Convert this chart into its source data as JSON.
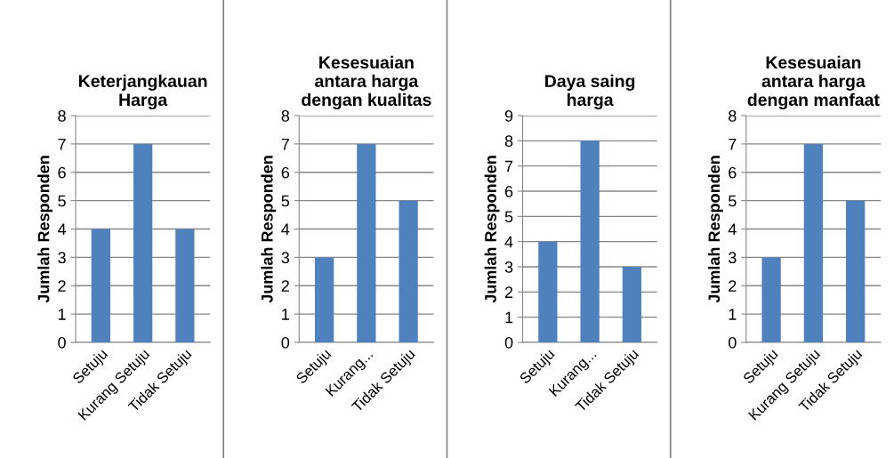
{
  "chart_data": [
    {
      "type": "bar",
      "title": "Keterjangkauan\nHarga",
      "ylabel": "Jumlah Responden",
      "categories": [
        "Setuju",
        "Kurang Setuju",
        "Tidak Setuju"
      ],
      "values": [
        4,
        7,
        4
      ],
      "color": "#4f81bd",
      "ylim": [
        0,
        8
      ],
      "yticks": [
        0,
        1,
        2,
        3,
        4,
        5,
        6,
        7,
        8
      ],
      "grid": "y"
    },
    {
      "type": "bar",
      "title": "Kesesuaian\nantara harga\ndengan kualitas",
      "ylabel": "Jumlah Responden",
      "categories": [
        "Setuju",
        "Kurang...",
        "Tidak Setuju"
      ],
      "values": [
        3,
        7,
        5
      ],
      "color": "#4f81bd",
      "ylim": [
        0,
        8
      ],
      "yticks": [
        0,
        1,
        2,
        3,
        4,
        5,
        6,
        7,
        8
      ],
      "grid": "y"
    },
    {
      "type": "bar",
      "title": "Daya saing\nharga",
      "ylabel": "Jumlah Responden",
      "categories": [
        "Setuju",
        "Kurang...",
        "Tidak Setuju"
      ],
      "values": [
        4,
        8,
        3
      ],
      "color": "#4f81bd",
      "ylim": [
        0,
        9
      ],
      "yticks": [
        0,
        1,
        2,
        3,
        4,
        5,
        6,
        7,
        8,
        9
      ],
      "grid": "y"
    },
    {
      "type": "bar",
      "title": "Kesesuaian\nantara harga\ndengan manfaat",
      "ylabel": "Jumlah Responden",
      "categories": [
        "Setuju",
        "Kurang Setuju",
        "Tidak Setuju"
      ],
      "values": [
        3,
        7,
        5
      ],
      "color": "#4f81bd",
      "ylim": [
        0,
        8
      ],
      "yticks": [
        0,
        1,
        2,
        3,
        4,
        5,
        6,
        7,
        8
      ],
      "grid": "y"
    }
  ]
}
